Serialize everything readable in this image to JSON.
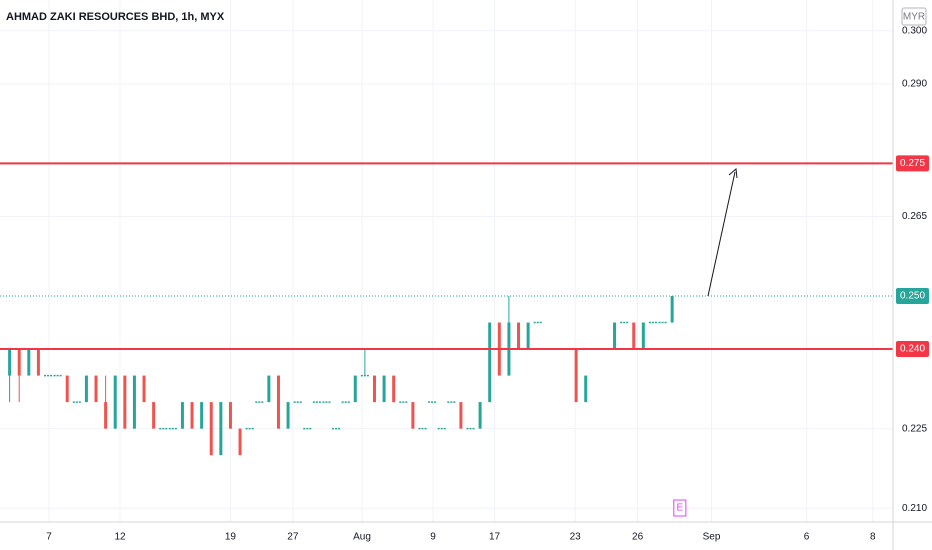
{
  "chart_data": {
    "type": "candlestick",
    "title": "AHMAD ZAKI RESOURCES BHD, 1h, MYX",
    "currency": "MYR",
    "up_color": "#26a69a",
    "down_color": "#ef5350",
    "grid": true,
    "open": [
      0.235,
      0.24,
      0.235,
      0.24,
      0.235,
      0.235,
      0.235,
      0.23,
      0.23,
      0.235,
      0.23,
      0.225,
      0.235,
      0.225,
      0.235,
      0.23,
      0.225,
      0.225,
      0.225,
      0.23,
      0.225,
      0.23,
      0.22,
      0.23,
      0.225,
      0.225,
      0.23,
      0.23,
      0.235,
      0.225,
      0.23,
      0.225,
      0.23,
      0.23,
      0.225,
      0.23,
      0.23,
      0.235,
      0.235,
      0.23,
      0.235,
      0.23,
      0.23,
      0.225,
      0.23,
      0.225,
      0.23,
      0.23,
      0.225,
      0.225,
      0.23,
      0.245,
      0.235,
      0.245,
      0.24,
      0.245,
      0.24,
      0.24,
      0.24,
      0.24,
      0.23,
      0.24,
      0.24,
      0.24,
      0.245,
      0.245,
      0.24,
      0.245,
      0.245,
      0.245
    ],
    "high": [
      0.24,
      0.24,
      0.24,
      0.24,
      0.235,
      0.235,
      0.235,
      0.23,
      0.235,
      0.235,
      0.235,
      0.235,
      0.235,
      0.235,
      0.235,
      0.23,
      0.225,
      0.225,
      0.23,
      0.23,
      0.23,
      0.23,
      0.23,
      0.23,
      0.225,
      0.225,
      0.23,
      0.235,
      0.235,
      0.23,
      0.23,
      0.225,
      0.23,
      0.23,
      0.225,
      0.23,
      0.235,
      0.24,
      0.235,
      0.235,
      0.235,
      0.23,
      0.23,
      0.225,
      0.23,
      0.225,
      0.23,
      0.23,
      0.225,
      0.23,
      0.245,
      0.245,
      0.25,
      0.245,
      0.245,
      0.245,
      0.24,
      0.24,
      0.24,
      0.24,
      0.235,
      0.24,
      0.24,
      0.245,
      0.245,
      0.245,
      0.245,
      0.245,
      0.245,
      0.25
    ],
    "low": [
      0.23,
      0.23,
      0.235,
      0.235,
      0.235,
      0.235,
      0.23,
      0.23,
      0.23,
      0.23,
      0.225,
      0.225,
      0.225,
      0.225,
      0.23,
      0.225,
      0.225,
      0.225,
      0.225,
      0.225,
      0.225,
      0.22,
      0.22,
      0.225,
      0.22,
      0.225,
      0.23,
      0.23,
      0.225,
      0.225,
      0.23,
      0.225,
      0.23,
      0.23,
      0.225,
      0.23,
      0.23,
      0.235,
      0.23,
      0.23,
      0.23,
      0.23,
      0.225,
      0.225,
      0.23,
      0.225,
      0.23,
      0.225,
      0.225,
      0.225,
      0.23,
      0.235,
      0.235,
      0.24,
      0.24,
      0.245,
      0.24,
      0.24,
      0.24,
      0.23,
      0.23,
      0.24,
      0.24,
      0.24,
      0.245,
      0.24,
      0.24,
      0.245,
      0.245,
      0.245
    ],
    "close": [
      0.24,
      0.235,
      0.24,
      0.235,
      0.235,
      0.235,
      0.23,
      0.23,
      0.235,
      0.23,
      0.225,
      0.235,
      0.225,
      0.235,
      0.23,
      0.225,
      0.225,
      0.225,
      0.23,
      0.225,
      0.23,
      0.22,
      0.23,
      0.225,
      0.22,
      0.225,
      0.23,
      0.235,
      0.225,
      0.23,
      0.23,
      0.225,
      0.23,
      0.23,
      0.225,
      0.23,
      0.235,
      0.235,
      0.23,
      0.235,
      0.23,
      0.23,
      0.225,
      0.225,
      0.23,
      0.225,
      0.23,
      0.225,
      0.225,
      0.23,
      0.245,
      0.235,
      0.245,
      0.24,
      0.245,
      0.245,
      0.24,
      0.24,
      0.24,
      0.23,
      0.235,
      0.24,
      0.24,
      0.245,
      0.245,
      0.24,
      0.245,
      0.245,
      0.245,
      0.25
    ],
    "xlim": [
      -1,
      92
    ],
    "ylim": [
      0.2074,
      0.3058
    ],
    "xticks": [
      {
        "value": 4.1,
        "label": "7"
      },
      {
        "value": 11.5,
        "label": "12"
      },
      {
        "value": 23,
        "label": "19"
      },
      {
        "value": 29.5,
        "label": "27"
      },
      {
        "value": 36.7,
        "label": "Aug"
      },
      {
        "value": 44.1,
        "label": "9"
      },
      {
        "value": 50.5,
        "label": "17"
      },
      {
        "value": 58.9,
        "label": "23"
      },
      {
        "value": 65.4,
        "label": "26"
      },
      {
        "value": 73.1,
        "label": "Sep"
      },
      {
        "value": 83,
        "label": "6"
      },
      {
        "value": 89.9,
        "label": "8"
      }
    ],
    "yticks": [
      {
        "value": 0.3,
        "label": "0.300"
      },
      {
        "value": 0.29,
        "label": "0.290"
      },
      {
        "value": 0.265,
        "label": "0.265"
      },
      {
        "value": 0.225,
        "label": "0.225"
      },
      {
        "value": 0.21,
        "label": "0.210"
      }
    ],
    "price_lines": [
      {
        "value": 0.275,
        "label": "0.275",
        "color": "#f23645",
        "style": "solid"
      },
      {
        "value": 0.25,
        "label": "0.250",
        "color": "#26a69a",
        "style": "dotted"
      },
      {
        "value": 0.24,
        "label": "0.240",
        "color": "#f23645",
        "style": "solid"
      }
    ],
    "earnings": {
      "label": "E",
      "x": 69.8
    }
  }
}
